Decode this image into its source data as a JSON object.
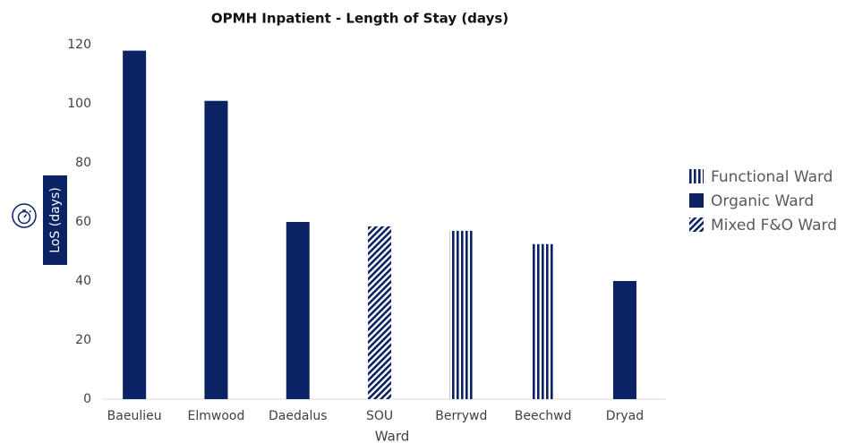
{
  "chart_data": {
    "type": "bar",
    "title": "OPMH Inpatient - Length of Stay (days)",
    "x_label": "Ward",
    "y_label": "LoS (days)",
    "categories": [
      "Baeulieu",
      "Elmwood",
      "Daedalus",
      "SOU",
      "Berrywd",
      "Beechwd",
      "Dryad"
    ],
    "series": [
      {
        "name": "Functional Ward",
        "color": "#0b2265",
        "pattern": "vertical",
        "values": [
          null,
          null,
          null,
          null,
          57,
          52.5,
          null
        ]
      },
      {
        "name": "Organic Ward",
        "color": "#0b2265",
        "pattern": "solid",
        "values": [
          118,
          101,
          60,
          null,
          null,
          null,
          40
        ]
      },
      {
        "name": "Mixed F&O Ward",
        "color": "#0b2265",
        "pattern": "diagonal",
        "values": [
          null,
          null,
          null,
          58.5,
          null,
          null,
          null
        ]
      }
    ],
    "ylim": [
      0,
      120
    ],
    "yticks": [
      0,
      20,
      40,
      60,
      80,
      100,
      120
    ],
    "grid": false,
    "legend": "right"
  }
}
